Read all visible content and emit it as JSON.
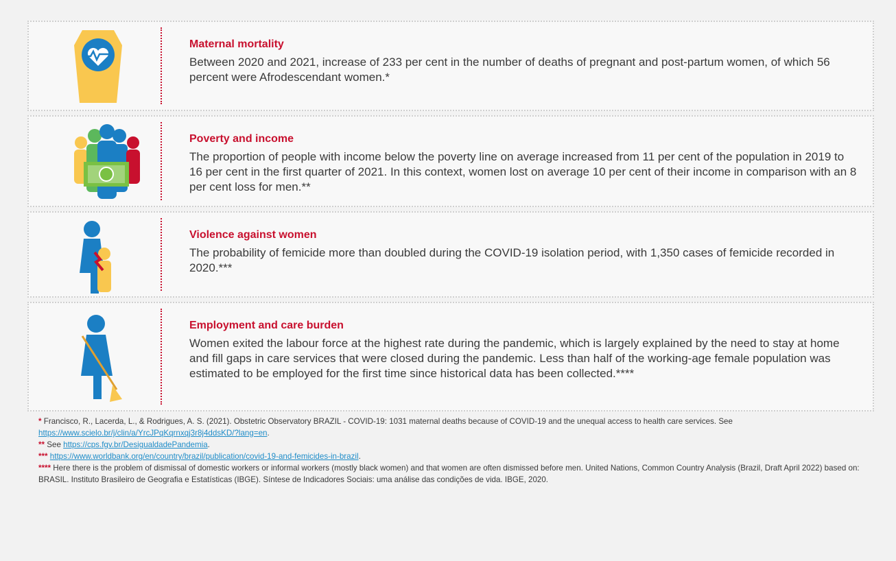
{
  "items": [
    {
      "heading": "Maternal mortality",
      "text": "Between 2020 and 2021, increase of 233 per cent in the number of deaths of pregnant and post-partum women, of which 56 percent were Afrodescendant women.*"
    },
    {
      "heading": "Poverty and income",
      "text": "The proportion of people with income below the poverty line on average increased from 11 per cent of the population in 2019 to 16 per cent in the first quarter of 2021. In this context, women lost on average 10 per cent of their income in comparison with an 8 per cent loss for men.**"
    },
    {
      "heading": "Violence against women",
      "text": "The probability of femicide more than doubled during the COVID-19 isolation period, with 1,350 cases of femicide recorded in 2020.***"
    },
    {
      "heading": "Employment and care burden",
      "text": "Women exited the labour force at the highest rate during the pandemic, which is largely explained by the need to stay at home and fill gaps in care services that were closed during the pandemic. Less than half of the working-age female population was estimated to be employed for the first time since historical data has been collected.****"
    }
  ],
  "footnotes": [
    {
      "marker": "*",
      "text": "Francisco, R., Lacerda, L., & Rodrigues, A. S. (2021). Obstetric Observatory BRAZIL - COVID-19: 1031 maternal deaths because of COVID-19 and the unequal access to health care services. See",
      "link": "https://www.scielo.br/j/clin/a/YrcJPqKqrnxqj3r8j4ddsKD/?lang=en",
      "tail": "."
    },
    {
      "marker": "**",
      "text": "See",
      "link": "https://cps.fgv.br/DesigualdadePandemia",
      "tail": "."
    },
    {
      "marker": "***",
      "link": "https://www.worldbank.org/en/country/brazil/publication/covid-19-and-femicides-in-brazil",
      "tail": "."
    },
    {
      "marker": "****",
      "text": "Here there is the problem of dismissal of domestic workers or informal workers (mostly black women) and that women are often dismissed before men. United Nations, Common Country Analysis (Brazil, Draft April 2022) based on: BRASIL. Instituto Brasileiro de Geografia e Estatísticas (IBGE). Síntese de Indicadores Sociais: uma análise das condições de vida. IBGE, 2020."
    }
  ]
}
